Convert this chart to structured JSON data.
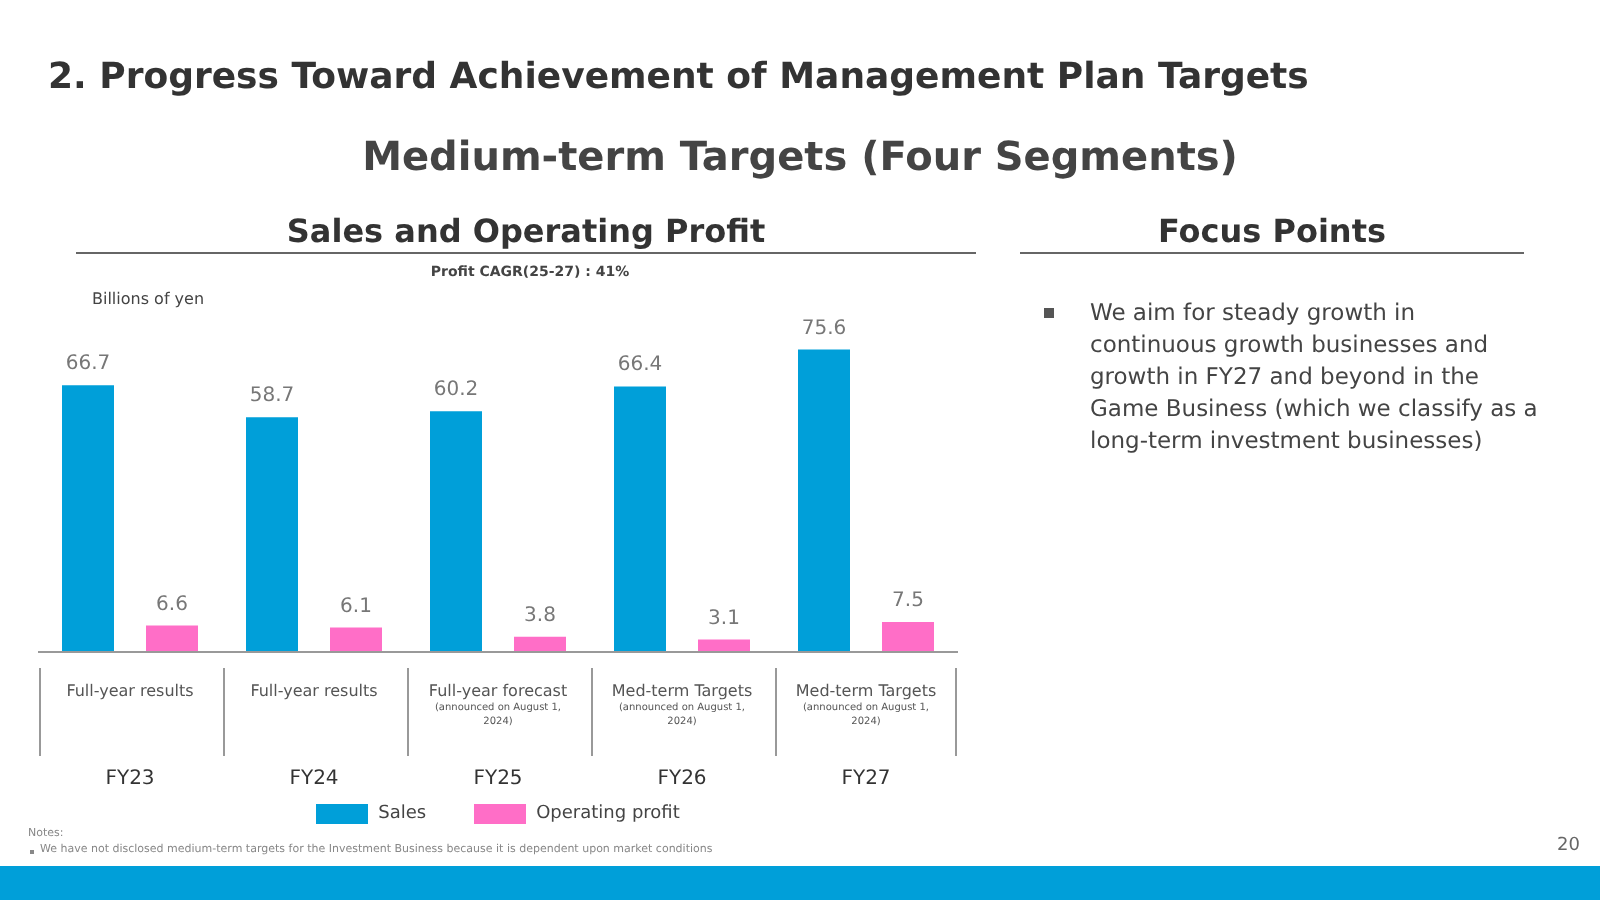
{
  "chart_data": {
    "type": "bar",
    "title": "2. Progress Toward Achievement of Management Plan Targets",
    "subtitle": "Medium-term Targets (Four Segments)",
    "ylabel": "Billions of yen",
    "categories": [
      "FY23",
      "FY24",
      "FY25",
      "FY26",
      "FY27"
    ],
    "series": [
      {
        "name": "Sales",
        "color": "#009fd9",
        "values": [
          66.7,
          58.7,
          60.2,
          66.4,
          75.6
        ]
      },
      {
        "name": "Operating profit",
        "color": "#ff6ec7",
        "values": [
          6.6,
          6.1,
          3.8,
          3.1,
          7.5
        ]
      }
    ],
    "data_labels": true,
    "legend": "bottom",
    "annotations": [
      "Profit CAGR(25-27) : 41%",
      "Sales and Operating Profit",
      "Focus Points",
      "We aim for steady growth in continuous growth businesses and growth in FY27 and beyond in the Game Business (which we classify as a long-term investment businesses)",
      "Notes:",
      "We have not disclosed medium-term targets for the Investment Business because it is dependent upon market conditions",
      "20",
      "Full-year results",
      "Full-year results",
      "Full-year forecast",
      "(announced on August 1, 2024)",
      "Med-term Targets",
      "(announced on August 1, 2024)",
      "Med-term Targets",
      "(announced on August 1, 2024)"
    ]
  }
}
